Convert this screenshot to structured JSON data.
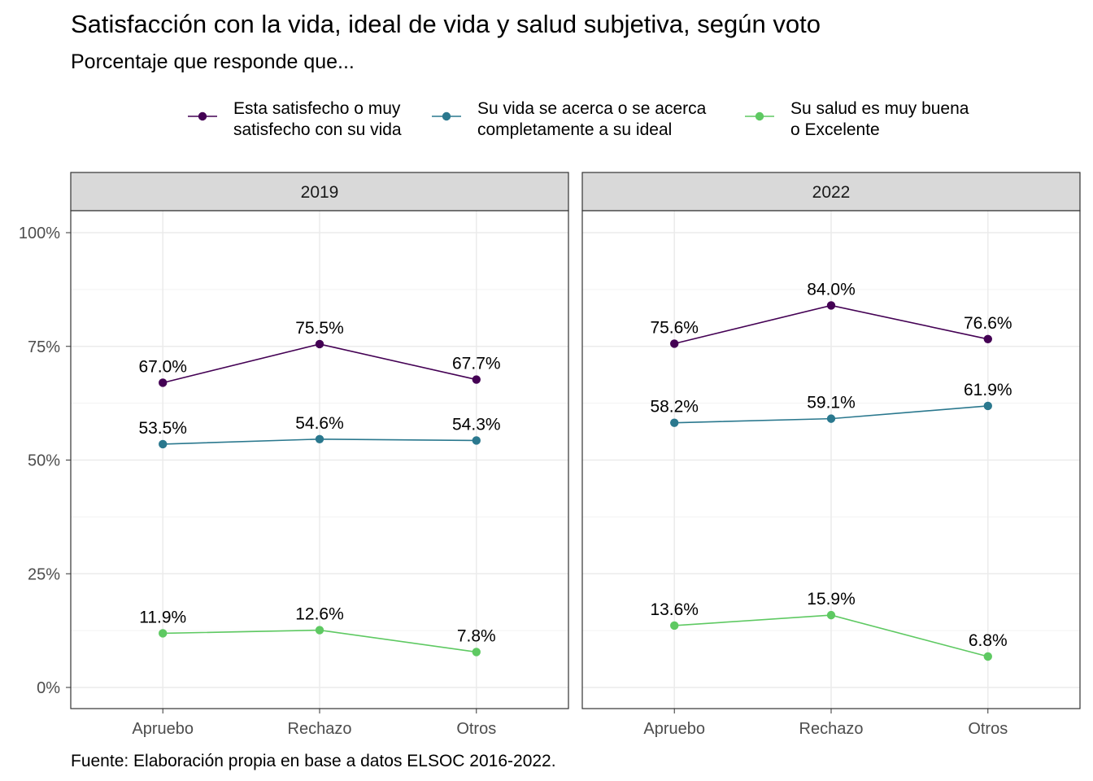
{
  "title": "Satisfacción con la vida, ideal de vida y salud subjetiva, según voto",
  "subtitle": "Porcentaje que responde que...",
  "caption": "Fuente: Elaboración propia en base a datos ELSOC 2016-2022.",
  "chart_data": {
    "type": "line",
    "facets": [
      "2019",
      "2022"
    ],
    "categories": [
      "Apruebo",
      "Rechazo",
      "Otros"
    ],
    "ylim": [
      0,
      100
    ],
    "yticks": [
      0,
      25,
      50,
      75,
      100
    ],
    "ytick_labels": [
      "0%",
      "25%",
      "50%",
      "75%",
      "100%"
    ],
    "grid": true,
    "legend_position": "top",
    "series": [
      {
        "name": "Esta satisfecho o muy satisfecho con su vida",
        "legend_lines": [
          "Esta satisfecho o muy",
          "satisfecho con su vida"
        ],
        "color": "#440154",
        "values": {
          "2019": [
            67.0,
            75.5,
            67.7
          ],
          "2022": [
            75.6,
            84.0,
            76.6
          ]
        },
        "labels": {
          "2019": [
            "67.0%",
            "75.5%",
            "67.7%"
          ],
          "2022": [
            "75.6%",
            "84.0%",
            "76.6%"
          ]
        }
      },
      {
        "name": "Su vida se acerca o se acerca completamente a su ideal",
        "legend_lines": [
          "Su vida se acerca o se acerca",
          "completamente a su ideal"
        ],
        "color": "#2a788e",
        "values": {
          "2019": [
            53.5,
            54.6,
            54.3
          ],
          "2022": [
            58.2,
            59.1,
            61.9
          ]
        },
        "labels": {
          "2019": [
            "53.5%",
            "54.6%",
            "54.3%"
          ],
          "2022": [
            "58.2%",
            "59.1%",
            "61.9%"
          ]
        }
      },
      {
        "name": "Su salud es muy buena o Excelente",
        "legend_lines": [
          "Su salud es muy buena",
          "o Excelente"
        ],
        "color": "#5ec962",
        "values": {
          "2019": [
            11.9,
            12.6,
            7.8
          ],
          "2022": [
            13.6,
            15.9,
            6.8
          ]
        },
        "labels": {
          "2019": [
            "11.9%",
            "12.6%",
            "7.8%"
          ],
          "2022": [
            "13.6%",
            "15.9%",
            "6.8%"
          ]
        }
      }
    ]
  }
}
